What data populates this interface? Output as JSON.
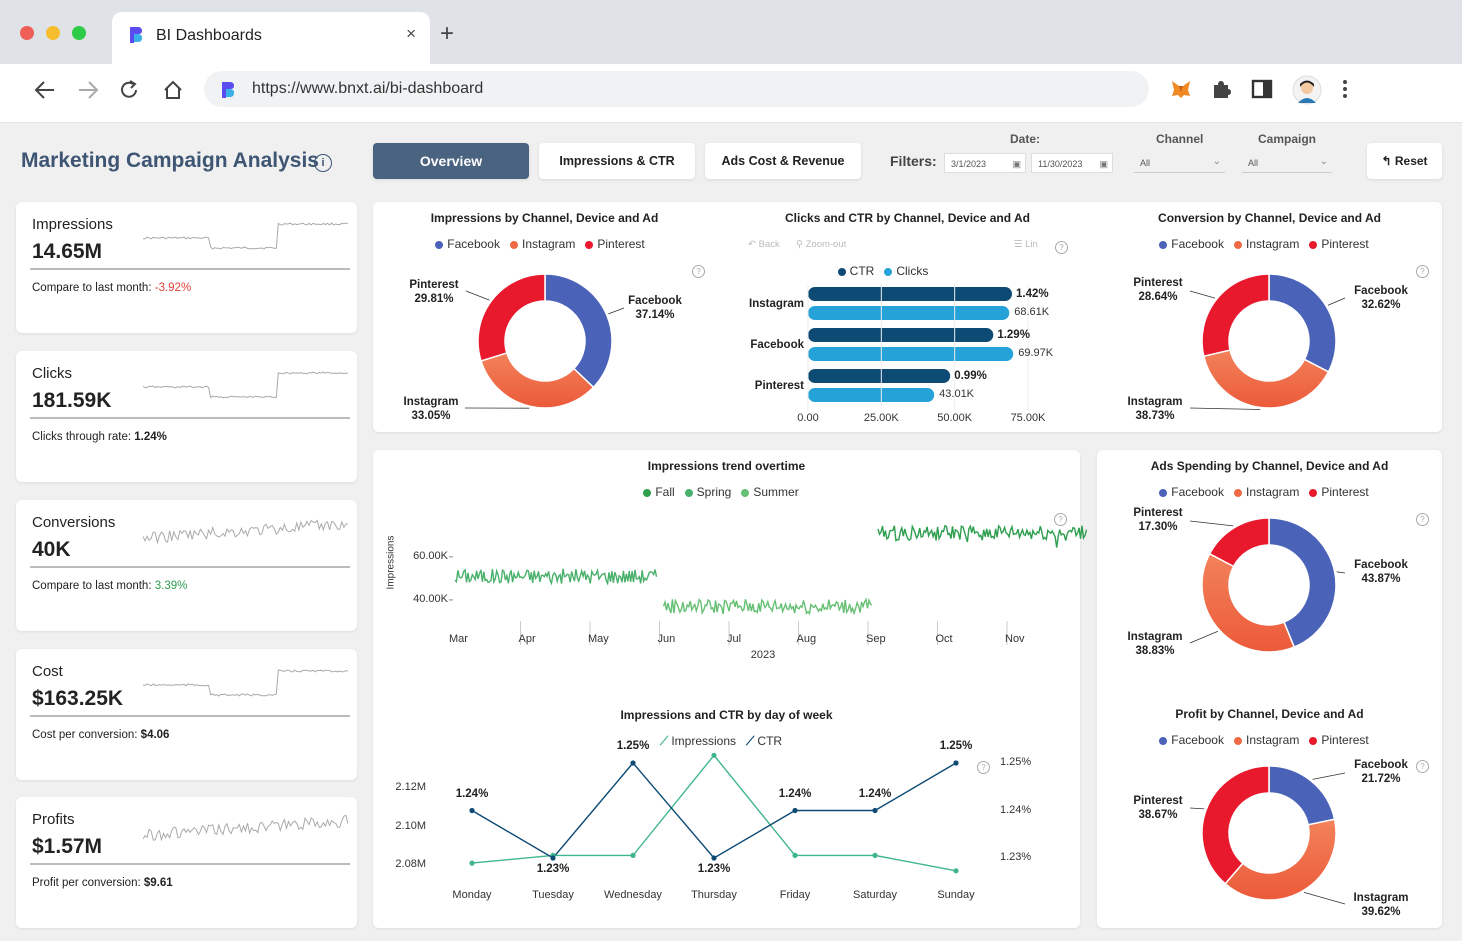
{
  "browser": {
    "tab_title": "BI Dashboards",
    "tab_close": "×",
    "new_tab": "+",
    "url": "https://www.bnxt.ai/bi-dashboard",
    "colors": {
      "red": "#ee5f57",
      "yellow": "#f6bd2f",
      "green": "#2ecb47",
      "brand": "#5b4cf0"
    }
  },
  "header": {
    "title": "Marketing Campaign Analysis",
    "info": "i",
    "tabs": [
      {
        "label": "Overview",
        "active": true
      },
      {
        "label": "Impressions & CTR",
        "active": false
      },
      {
        "label": "Ads Cost & Revenue",
        "active": false
      }
    ],
    "filters_label": "Filters:",
    "date_label": "Date:",
    "date_from": "3/1/2023",
    "date_to": "11/30/2023",
    "channel_label": "Channel",
    "channel_value": "All",
    "campaign_label": "Campaign",
    "campaign_value": "All",
    "reset_label": "Reset"
  },
  "kpis": [
    {
      "name": "Impressions",
      "value": "14.65M",
      "sub_label": "Compare to last month: ",
      "sub_value": "-3.92%",
      "sub_color": "#e0413a"
    },
    {
      "name": "Clicks",
      "value": "181.59K",
      "sub_label": "Clicks through rate: ",
      "sub_value": "1.24%",
      "sub_color": "#222222"
    },
    {
      "name": "Conversions",
      "value": "40K",
      "sub_label": "Compare to last month: ",
      "sub_value": "3.39%",
      "sub_color": "#2e9e4f"
    },
    {
      "name": "Cost",
      "value": "$163.25K",
      "sub_label": "Cost per conversion: ",
      "sub_value": "$4.06",
      "sub_color": "#222222"
    },
    {
      "name": "Profits",
      "value": "$1.57M",
      "sub_label": "Profit per conversion: ",
      "sub_value": "$9.61",
      "sub_color": "#222222"
    }
  ],
  "legend_channels": [
    {
      "name": "Facebook",
      "color": "#4a62b8"
    },
    {
      "name": "Instagram",
      "color": "#f06b45"
    },
    {
      "name": "Pinterest",
      "color": "#e8192c"
    }
  ],
  "help": "?",
  "chart_data": [
    {
      "id": "impressions_donut",
      "type": "pie",
      "title": "Impressions by Channel, Device and Ad",
      "labels": [
        "Facebook",
        "Instagram",
        "Pinterest"
      ],
      "values": [
        37.14,
        33.05,
        29.81
      ],
      "value_labels": [
        "37.14%",
        "33.05%",
        "29.81%"
      ]
    },
    {
      "id": "clicks_ctr_bar",
      "type": "bar",
      "title": "Clicks and CTR by Channel, Device and Ad",
      "toolbar": {
        "back": "Back",
        "zoom": "Zoom-out",
        "lin": "Lin"
      },
      "legend": [
        "CTR",
        "Clicks"
      ],
      "categories": [
        "Instagram",
        "Facebook",
        "Pinterest"
      ],
      "series": [
        {
          "name": "CTR",
          "values": [
            1.42,
            1.29,
            0.99
          ],
          "labels": [
            "1.42%",
            "1.29%",
            "0.99%"
          ],
          "color": "#0d4a74"
        },
        {
          "name": "Clicks",
          "values": [
            68610,
            69970,
            43010
          ],
          "labels": [
            "68.61K",
            "69.97K",
            "43.01K"
          ],
          "color": "#25a3d8"
        }
      ],
      "xticks": [
        "0.00",
        "25.00K",
        "50.00K",
        "75.00K"
      ],
      "xlim": [
        0,
        75000
      ]
    },
    {
      "id": "conversion_donut",
      "type": "pie",
      "title": "Conversion by Channel, Device and Ad",
      "labels": [
        "Facebook",
        "Instagram",
        "Pinterest"
      ],
      "values": [
        32.62,
        38.73,
        28.64
      ],
      "value_labels": [
        "32.62%",
        "38.73%",
        "28.64%"
      ]
    },
    {
      "id": "impressions_trend",
      "type": "line",
      "title": "Impressions trend overtime",
      "legend": [
        {
          "name": "Fall",
          "color": "#2e9e4f"
        },
        {
          "name": "Spring",
          "color": "#48b06a"
        },
        {
          "name": "Summer",
          "color": "#66c073"
        }
      ],
      "ylabel": "Impressions",
      "yticks": [
        "60.00K",
        "40.00K"
      ],
      "ytick_values": [
        60000,
        40000
      ],
      "ylim": [
        20000,
        85000
      ],
      "xticks": [
        "Mar",
        "Apr",
        "May",
        "Jun",
        "Jul",
        "Aug",
        "Sep",
        "Oct",
        "Nov"
      ],
      "xlabel": "2023",
      "segments": [
        {
          "name": "Spring",
          "start_month": 0,
          "end_month": 2.9,
          "level": 51000
        },
        {
          "name": "Summer",
          "start_month": 3.0,
          "end_month": 6.0,
          "level": 37000
        },
        {
          "name": "Fall",
          "start_month": 6.0,
          "end_month": 9.0,
          "level": 71000
        }
      ]
    },
    {
      "id": "ads_spending_donut",
      "type": "pie",
      "title": "Ads Spending by Channel, Device and Ad",
      "labels": [
        "Facebook",
        "Instagram",
        "Pinterest"
      ],
      "values": [
        43.87,
        38.83,
        17.3
      ],
      "value_labels": [
        "43.87%",
        "38.83%",
        "17.30%"
      ]
    },
    {
      "id": "impressions_ctr_dow",
      "type": "line",
      "title": "Impressions and CTR by day of week",
      "legend": [
        "Impressions",
        "CTR"
      ],
      "categories": [
        "Monday",
        "Tuesday",
        "Wednesday",
        "Thursday",
        "Friday",
        "Saturday",
        "Sunday"
      ],
      "series": [
        {
          "name": "Impressions",
          "values": [
            2.081,
            2.085,
            2.085,
            2.137,
            2.085,
            2.085,
            2.077
          ],
          "color": "#3fb68e",
          "axis": "left"
        },
        {
          "name": "CTR",
          "values": [
            1.24,
            1.23,
            1.25,
            1.23,
            1.24,
            1.24,
            1.25
          ],
          "labels": [
            "1.24%",
            "1.23%",
            "1.25%",
            "1.23%",
            "1.24%",
            "1.24%",
            "1.25%"
          ],
          "color": "#0d4a74",
          "axis": "right"
        }
      ],
      "yticks_left": [
        "2.12M",
        "2.10M",
        "2.08M"
      ],
      "yticks_right": [
        "1.25%",
        "1.24%",
        "1.23%"
      ],
      "ylim_left": [
        2.08,
        2.12
      ],
      "ylim_right": [
        1.23,
        1.25
      ]
    },
    {
      "id": "profit_donut",
      "type": "pie",
      "title": "Profit by Channel, Device and Ad",
      "labels": [
        "Facebook",
        "Instagram",
        "Pinterest"
      ],
      "values": [
        21.72,
        39.62,
        38.67
      ],
      "value_labels": [
        "21.72%",
        "39.62%",
        "38.67%"
      ]
    }
  ]
}
